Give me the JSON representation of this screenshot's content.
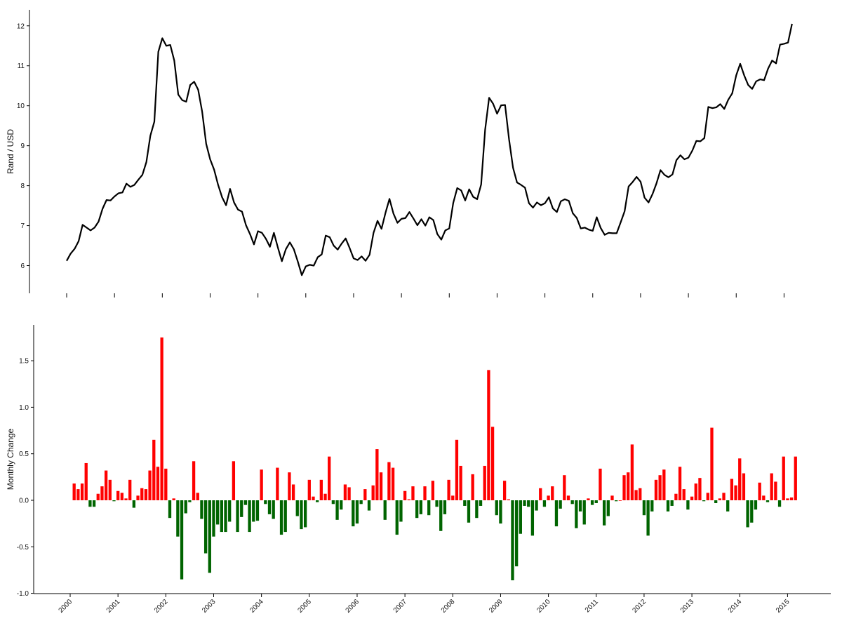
{
  "colors": {
    "line": "#000000",
    "positive": "#ff0000",
    "negative": "#006400",
    "axis": "#000000"
  },
  "chart_data": [
    {
      "type": "line",
      "ylabel": "Rand / USD",
      "xlabel": "",
      "ylim": [
        5.5,
        12.4
      ],
      "yticks": [
        6,
        7,
        8,
        9,
        10,
        11,
        12
      ],
      "xtick_years": [
        2000,
        2001,
        2002,
        2003,
        2004,
        2005,
        2006,
        2007,
        2008,
        2009,
        2010,
        2011,
        2012,
        2013,
        2014,
        2015
      ],
      "x_start": "2000-01",
      "series": [
        {
          "values": [
            6.12,
            6.3,
            6.42,
            6.61,
            7.02,
            6.95,
            6.88,
            6.95,
            7.1,
            7.42,
            7.64,
            7.63,
            7.73,
            7.81,
            7.83,
            8.05,
            7.97,
            8.02,
            8.15,
            8.27,
            8.59,
            9.25,
            9.6,
            11.35,
            11.69,
            11.5,
            11.52,
            11.13,
            10.28,
            10.14,
            10.1,
            10.52,
            10.6,
            10.4,
            9.85,
            9.05,
            8.66,
            8.4,
            8.02,
            7.71,
            7.51,
            7.92,
            7.58,
            7.4,
            7.35,
            7.01,
            6.79,
            6.53,
            6.86,
            6.82,
            6.67,
            6.47,
            6.82,
            6.45,
            6.11,
            6.41,
            6.58,
            6.41,
            6.1,
            5.76,
            5.98,
            6.02,
            6.0,
            6.21,
            6.28,
            6.75,
            6.71,
            6.5,
            6.4,
            6.55,
            6.68,
            6.44,
            6.18,
            6.14,
            6.23,
            6.12,
            6.27,
            6.82,
            7.12,
            6.92,
            7.32,
            7.67,
            7.3,
            7.07,
            7.17,
            7.19,
            7.34,
            7.18,
            7.01,
            7.16,
            7.0,
            7.21,
            7.14,
            6.79,
            6.65,
            6.88,
            6.93,
            7.57,
            7.94,
            7.88,
            7.63,
            7.91,
            7.72,
            7.66,
            8.03,
            9.4,
            10.2,
            10.05,
            9.8,
            10.01,
            10.02,
            9.16,
            8.45,
            8.08,
            8.02,
            7.95,
            7.56,
            7.45,
            7.58,
            7.51,
            7.56,
            7.71,
            7.43,
            7.34,
            7.61,
            7.66,
            7.62,
            7.31,
            7.19,
            6.93,
            6.95,
            6.9,
            6.87,
            7.21,
            6.94,
            6.77,
            6.82,
            6.81,
            6.81,
            7.08,
            7.36,
            7.98,
            8.09,
            8.22,
            8.1,
            7.7,
            7.58,
            7.79,
            8.06,
            8.39,
            8.27,
            8.21,
            8.28,
            8.64,
            8.76,
            8.66,
            8.7,
            8.88,
            9.12,
            9.11,
            9.19,
            9.97,
            9.94,
            9.96,
            10.04,
            9.92,
            10.15,
            10.31,
            10.76,
            11.05,
            10.76,
            10.52,
            10.42,
            10.61,
            10.66,
            10.64,
            10.93,
            11.13,
            11.06,
            11.53,
            11.55,
            11.58,
            12.05
          ]
        }
      ]
    },
    {
      "type": "bar",
      "ylabel": "Monthly Change",
      "xlabel": "",
      "ylim": [
        -1.0,
        1.85
      ],
      "yticks": [
        -1.0,
        -0.5,
        0.0,
        0.5,
        1.0,
        1.5
      ],
      "ytick_labels": [
        "-1.0",
        "-0.5",
        "0.0",
        "0.5",
        "1.0",
        "1.5"
      ],
      "xtick_labels": [
        "2000",
        "2001",
        "2002",
        "2003",
        "2004",
        "2005",
        "2006",
        "2007",
        "2008",
        "2009",
        "2010",
        "2011",
        "2012",
        "2013",
        "2014",
        "2015"
      ],
      "x_start": "2000-02",
      "series": [
        {
          "values": [
            0.18,
            0.12,
            0.18,
            0.4,
            -0.07,
            -0.07,
            0.07,
            0.15,
            0.32,
            0.22,
            -0.01,
            0.1,
            0.08,
            0.02,
            0.22,
            -0.08,
            0.05,
            0.13,
            0.12,
            0.32,
            0.65,
            0.36,
            1.75,
            0.34,
            -0.19,
            0.02,
            -0.39,
            -0.85,
            -0.14,
            -0.02,
            0.42,
            0.08,
            -0.2,
            -0.57,
            -0.78,
            -0.39,
            -0.26,
            -0.34,
            -0.34,
            -0.23,
            0.42,
            -0.34,
            -0.18,
            -0.05,
            -0.34,
            -0.23,
            -0.22,
            0.33,
            -0.04,
            -0.15,
            -0.2,
            0.35,
            -0.37,
            -0.34,
            0.3,
            0.17,
            -0.17,
            -0.31,
            -0.29,
            0.22,
            0.04,
            -0.02,
            0.22,
            0.07,
            0.47,
            -0.04,
            -0.21,
            -0.1,
            0.17,
            0.14,
            -0.28,
            -0.25,
            -0.04,
            0.12,
            -0.11,
            0.16,
            0.55,
            0.3,
            -0.21,
            0.41,
            0.35,
            -0.37,
            -0.23,
            0.1,
            0.01,
            0.15,
            -0.19,
            -0.15,
            0.15,
            -0.16,
            0.21,
            -0.07,
            -0.33,
            -0.15,
            0.22,
            0.05,
            0.65,
            0.37,
            -0.06,
            -0.24,
            0.28,
            -0.19,
            -0.06,
            0.37,
            1.4,
            0.79,
            -0.16,
            -0.25,
            0.21,
            0.01,
            -0.86,
            -0.71,
            -0.36,
            -0.06,
            -0.07,
            -0.38,
            -0.11,
            0.13,
            -0.07,
            0.05,
            0.15,
            -0.28,
            -0.09,
            0.27,
            0.05,
            -0.04,
            -0.3,
            -0.12,
            -0.26,
            0.02,
            -0.05,
            -0.03,
            0.34,
            -0.27,
            -0.17,
            0.05,
            -0.01,
            0.0,
            0.27,
            0.3,
            0.6,
            0.11,
            0.13,
            -0.16,
            -0.38,
            -0.12,
            0.22,
            0.27,
            0.33,
            -0.12,
            -0.06,
            0.07,
            0.36,
            0.12,
            -0.1,
            0.04,
            0.18,
            0.24,
            -0.01,
            0.08,
            0.78,
            -0.03,
            0.02,
            0.08,
            -0.12,
            0.23,
            0.16,
            0.45,
            0.29,
            -0.29,
            -0.24,
            -0.1,
            0.19,
            0.05,
            -0.02,
            0.29,
            0.2,
            -0.07,
            0.47,
            0.02,
            0.03,
            0.47
          ]
        }
      ]
    }
  ]
}
